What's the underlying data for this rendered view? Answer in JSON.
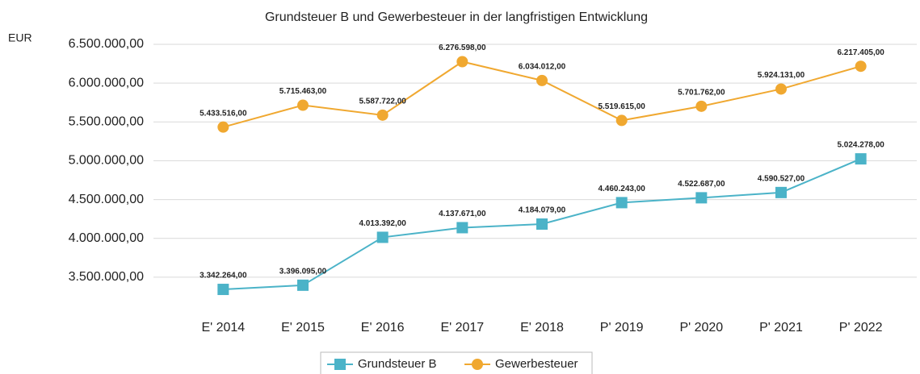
{
  "chart_data": {
    "type": "line",
    "title": "Grundsteuer B und Gewerbesteuer in der langfristigen Entwicklung",
    "y_axis_label": "EUR",
    "categories": [
      "E' 2014",
      "E' 2015",
      "E' 2016",
      "E' 2017",
      "E' 2018",
      "P' 2019",
      "P' 2020",
      "P' 2021",
      "P' 2022"
    ],
    "series": [
      {
        "name": "Grundsteuer B",
        "color": "#4bb3c8",
        "marker": "square",
        "values": [
          3342264,
          3396095,
          4013392,
          4137671,
          4184079,
          4460243,
          4522687,
          4590527,
          5024278
        ],
        "value_labels": [
          "3.342.264,00",
          "3.396.095,00",
          "4.013.392,00",
          "4.137.671,00",
          "4.184.079,00",
          "4.460.243,00",
          "4.522.687,00",
          "4.590.527,00",
          "5.024.278,00"
        ]
      },
      {
        "name": "Gewerbesteuer",
        "color": "#f0a830",
        "marker": "circle",
        "values": [
          5433516,
          5715463,
          5587722,
          6276598,
          6034012,
          5519615,
          5701762,
          5924131,
          6217405
        ],
        "value_labels": [
          "5.433.516,00",
          "5.715.463,00",
          "5.587.722,00",
          "6.276.598,00",
          "6.034.012,00",
          "5.519.615,00",
          "5.701.762,00",
          "5.924.131,00",
          "6.217.405,00"
        ]
      }
    ],
    "ylim": [
      3000000,
      6500000
    ],
    "yticks": [
      {
        "value": 3500000,
        "label": "3.500.000,00"
      },
      {
        "value": 4000000,
        "label": "4.000.000,00"
      },
      {
        "value": 4500000,
        "label": "4.500.000,00"
      },
      {
        "value": 5000000,
        "label": "5.000.000,00"
      },
      {
        "value": 5500000,
        "label": "5.500.000,00"
      },
      {
        "value": 6000000,
        "label": "6.000.000,00"
      },
      {
        "value": 6500000,
        "label": "6.500.000,00"
      }
    ],
    "grid": true,
    "legend": "bottom"
  }
}
